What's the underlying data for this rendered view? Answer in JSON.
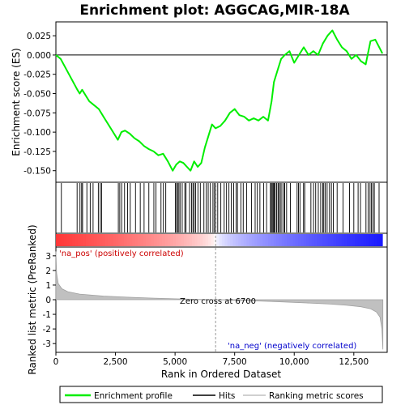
{
  "colors": {
    "enrichment_line": "#00ee00",
    "hits": "#000000",
    "ranking_fill": "#c0c0c0",
    "zero_line": "#808080",
    "pos_label": "#cc0000",
    "neg_label": "#0000cc"
  },
  "chart_data": {
    "type": "line",
    "title": "Enrichment plot: AGGCAG,MIR-18A",
    "legend": {
      "placement": "bottom",
      "entries": [
        "Enrichment profile",
        "Hits",
        "Ranking metric scores"
      ]
    },
    "panels": {
      "enrichment": {
        "ylabel": "Enrichment score (ES)",
        "ylim": [
          -0.165,
          0.043
        ],
        "yticks": [
          0.025,
          0.0,
          -0.025,
          -0.05,
          -0.075,
          -0.1,
          -0.125,
          -0.15
        ],
        "ytick_labels": [
          "0.025",
          "0.000",
          "-0.025",
          "-0.050",
          "-0.075",
          "-0.100",
          "-0.125",
          "-0.150"
        ],
        "series": [
          {
            "name": "Enrichment profile",
            "x": [
              0,
              200,
              900,
              1000,
              1100,
              1400,
              1600,
              1800,
              2000,
              2300,
              2600,
              2750,
              2900,
              3100,
              3300,
              3500,
              3700,
              3900,
              4100,
              4300,
              4500,
              4700,
              4900,
              5050,
              5200,
              5350,
              5500,
              5650,
              5800,
              5950,
              6100,
              6250,
              6400,
              6550,
              6700,
              6900,
              7100,
              7300,
              7500,
              7700,
              7900,
              8100,
              8300,
              8500,
              8700,
              8900,
              9050,
              9150,
              9300,
              9450,
              9600,
              9800,
              10000,
              10200,
              10400,
              10600,
              10800,
              11000,
              11200,
              11400,
              11600,
              11800,
              12000,
              12200,
              12400,
              12600,
              12800,
              13000,
              13200,
              13400,
              13600,
              13700
            ],
            "y": [
              0.0,
              -0.005,
              -0.045,
              -0.05,
              -0.045,
              -0.06,
              -0.065,
              -0.07,
              -0.08,
              -0.095,
              -0.11,
              -0.1,
              -0.098,
              -0.102,
              -0.108,
              -0.112,
              -0.118,
              -0.122,
              -0.125,
              -0.13,
              -0.128,
              -0.138,
              -0.15,
              -0.142,
              -0.138,
              -0.14,
              -0.145,
              -0.15,
              -0.138,
              -0.145,
              -0.14,
              -0.12,
              -0.105,
              -0.09,
              -0.095,
              -0.092,
              -0.085,
              -0.075,
              -0.07,
              -0.078,
              -0.08,
              -0.085,
              -0.082,
              -0.085,
              -0.08,
              -0.085,
              -0.06,
              -0.035,
              -0.02,
              -0.005,
              0.0,
              0.005,
              -0.01,
              0.0,
              0.01,
              0.0,
              0.005,
              0.0,
              0.015,
              0.025,
              0.032,
              0.02,
              0.01,
              0.005,
              -0.005,
              0.0,
              -0.008,
              -0.012,
              0.018,
              0.02,
              0.008,
              0.002
            ]
          }
        ]
      },
      "hits": {
        "positions": [
          230,
          890,
          1010,
          1080,
          1120,
          1300,
          1440,
          1560,
          1780,
          1860,
          1920,
          2620,
          2680,
          2760,
          2880,
          3010,
          3120,
          3340,
          3540,
          3700,
          3900,
          4110,
          4200,
          4410,
          4510,
          4610,
          5010,
          5060,
          5110,
          5160,
          5210,
          5300,
          5410,
          5460,
          5610,
          5690,
          5750,
          5800,
          5860,
          5960,
          6060,
          6210,
          6310,
          6390,
          6480,
          6590,
          6650,
          6710,
          6790,
          6920,
          7060,
          7160,
          7260,
          7360,
          7460,
          7560,
          7620,
          7760,
          7860,
          8000,
          8210,
          8360,
          8450,
          8560,
          8720,
          8840,
          9000,
          9040,
          9080,
          9120,
          9160,
          9200,
          9260,
          9320,
          9360,
          9420,
          9480,
          9560,
          9600,
          9680,
          9840,
          10120,
          10180,
          10240,
          10390,
          10440,
          10700,
          10810,
          10900,
          11010,
          11110,
          11200,
          11240,
          11300,
          11380,
          11480,
          11560,
          11640,
          11800,
          12050,
          12320,
          12500,
          12680,
          12780,
          13010,
          13100,
          13180,
          13240,
          13300,
          13360,
          13560
        ]
      },
      "ranking": {
        "ylabel": "Ranked list metric (PreRanked)",
        "ylim": [
          -3.6,
          3.6
        ],
        "yticks": [
          3,
          2,
          1,
          0,
          -1,
          -2,
          -3
        ],
        "ytick_labels": [
          "3",
          "2",
          "1",
          "0",
          "-1",
          "-2",
          "-3"
        ],
        "series": [
          {
            "name": "Ranking metric scores",
            "x": [
              0,
              30,
              100,
              250,
              500,
              1000,
              2000,
              3000,
              4000,
              5000,
              6000,
              6700,
              7500,
              8500,
              9500,
              10500,
              11500,
              12200,
              12800,
              13200,
              13450,
              13600,
              13680,
              13720
            ],
            "y": [
              3.3,
              1.8,
              1.1,
              0.75,
              0.55,
              0.38,
              0.25,
              0.17,
              0.11,
              0.06,
              0.02,
              0.0,
              -0.04,
              -0.09,
              -0.15,
              -0.22,
              -0.3,
              -0.38,
              -0.48,
              -0.62,
              -0.85,
              -1.2,
              -2.0,
              -3.4
            ]
          }
        ],
        "zero_cross_label": "Zero cross at 6700",
        "zero_cross_x": 6700,
        "pos_label": "'na_pos' (positively correlated)",
        "neg_label": "'na_neg' (negatively correlated)"
      }
    },
    "xaxis": {
      "label": "Rank in Ordered Dataset",
      "xlim": [
        0,
        13900
      ],
      "ticks": [
        0,
        2500,
        5000,
        7500,
        10000,
        12500
      ],
      "tick_labels": [
        "0",
        "2,500",
        "5,000",
        "7,500",
        "10,000",
        "12,500"
      ]
    }
  }
}
